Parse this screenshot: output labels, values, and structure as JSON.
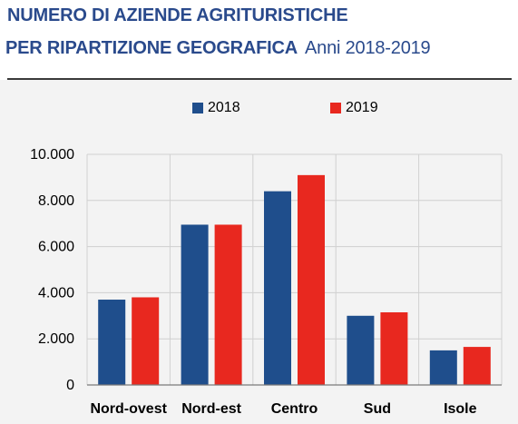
{
  "title": {
    "line1": "NUMERO DI AZIENDE AGRITURISTICHE",
    "line2": "PER RIPARTIZIONE GEOGRAFICA",
    "subtitle": "Anni 2018-2019"
  },
  "colors": {
    "title": "#2a4a8c",
    "series_2018": "#1f4e8c",
    "series_2019": "#e8281f",
    "grid": "#d0d0d0",
    "chart_background": "#f3f3f3"
  },
  "chart_data": {
    "type": "bar",
    "categories": [
      "Nord-ovest",
      "Nord-est",
      "Centro",
      "Sud",
      "Isole"
    ],
    "series": [
      {
        "name": "2018",
        "values": [
          3700,
          6950,
          8400,
          3000,
          1500
        ]
      },
      {
        "name": "2019",
        "values": [
          3800,
          6950,
          9100,
          3150,
          1650
        ]
      }
    ],
    "y_ticks": [
      "0",
      "2.000",
      "4.000",
      "6.000",
      "8.000",
      "10.000"
    ],
    "y_tick_values": [
      0,
      2000,
      4000,
      6000,
      8000,
      10000
    ],
    "ylim": [
      0,
      10000
    ],
    "grid": true,
    "legend_position": "top-center",
    "title": "NUMERO DI AZIENDE AGRITURISTICHE PER RIPARTIZIONE GEOGRAFICA",
    "subtitle": "Anni 2018-2019",
    "xlabel": "",
    "ylabel": ""
  }
}
